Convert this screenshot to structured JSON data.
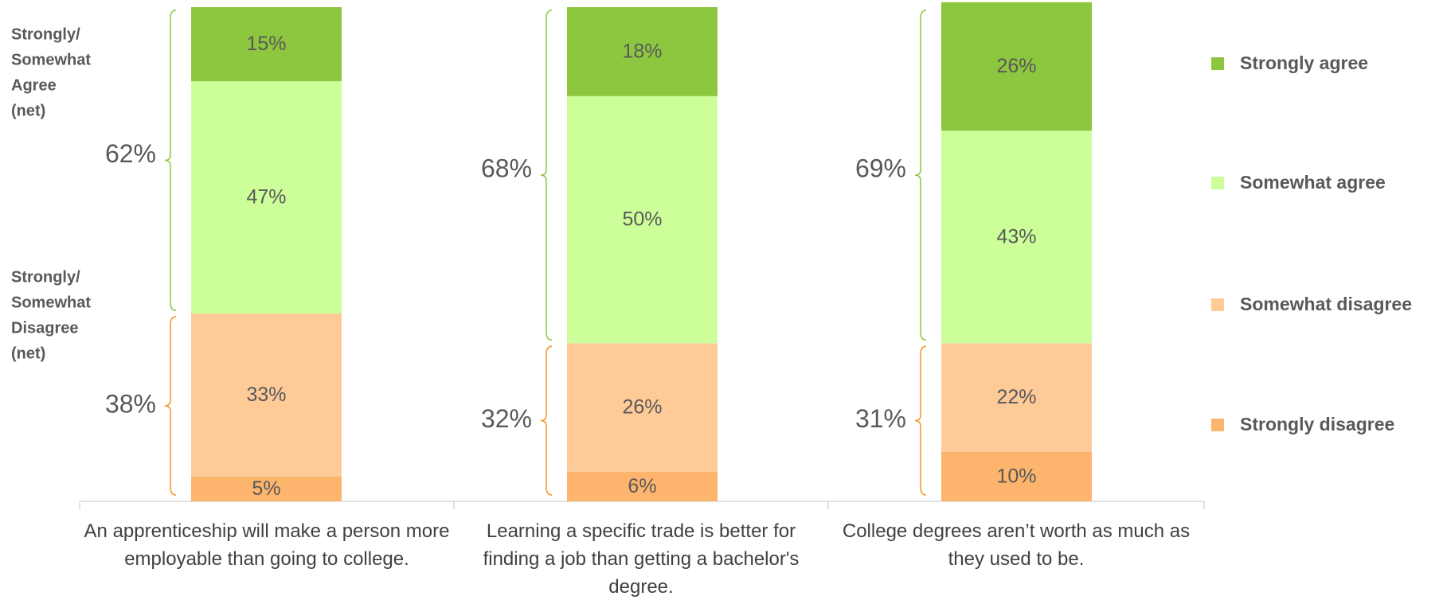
{
  "chart_data": {
    "type": "stacked_bar",
    "categories": [
      "An apprenticeship will make a person more employable than going to college.",
      "Learning a specific trade is better for finding a job than getting a bachelor's degree.",
      "College degrees aren’t worth as much as they used to be."
    ],
    "series": [
      {
        "name": "Strongly agree",
        "color": "#8dc63f",
        "values": [
          15,
          18,
          26
        ],
        "value_labels": [
          "15%",
          "18%",
          "26%"
        ]
      },
      {
        "name": "Somewhat agree",
        "color": "#ccff99",
        "values": [
          47,
          50,
          43
        ],
        "value_labels": [
          "47%",
          "50%",
          "43%"
        ]
      },
      {
        "name": "Somewhat disagree",
        "color": "#fdca98",
        "values": [
          33,
          26,
          22
        ],
        "value_labels": [
          "33%",
          "26%",
          "22%"
        ]
      },
      {
        "name": "Strongly disagree",
        "color": "#fdb46d",
        "values": [
          5,
          6,
          10
        ],
        "value_labels": [
          "5%",
          "6%",
          "10%"
        ]
      }
    ],
    "net_agree": {
      "color": "#8dc63f",
      "values": [
        62,
        68,
        69
      ],
      "value_labels": [
        "62%",
        "68%",
        "69%"
      ]
    },
    "net_disagree": {
      "color": "#f7941d",
      "values": [
        38,
        32,
        31
      ],
      "value_labels": [
        "38%",
        "32%",
        "31%"
      ]
    },
    "annotations": {
      "agree_net": [
        "Strongly/",
        "Somewhat",
        "Agree",
        "(net)"
      ],
      "disagree_net": [
        "Strongly/",
        "Somewhat",
        "Disagree",
        "(net)"
      ]
    },
    "ylim": [
      0,
      100
    ],
    "legend": "right"
  }
}
